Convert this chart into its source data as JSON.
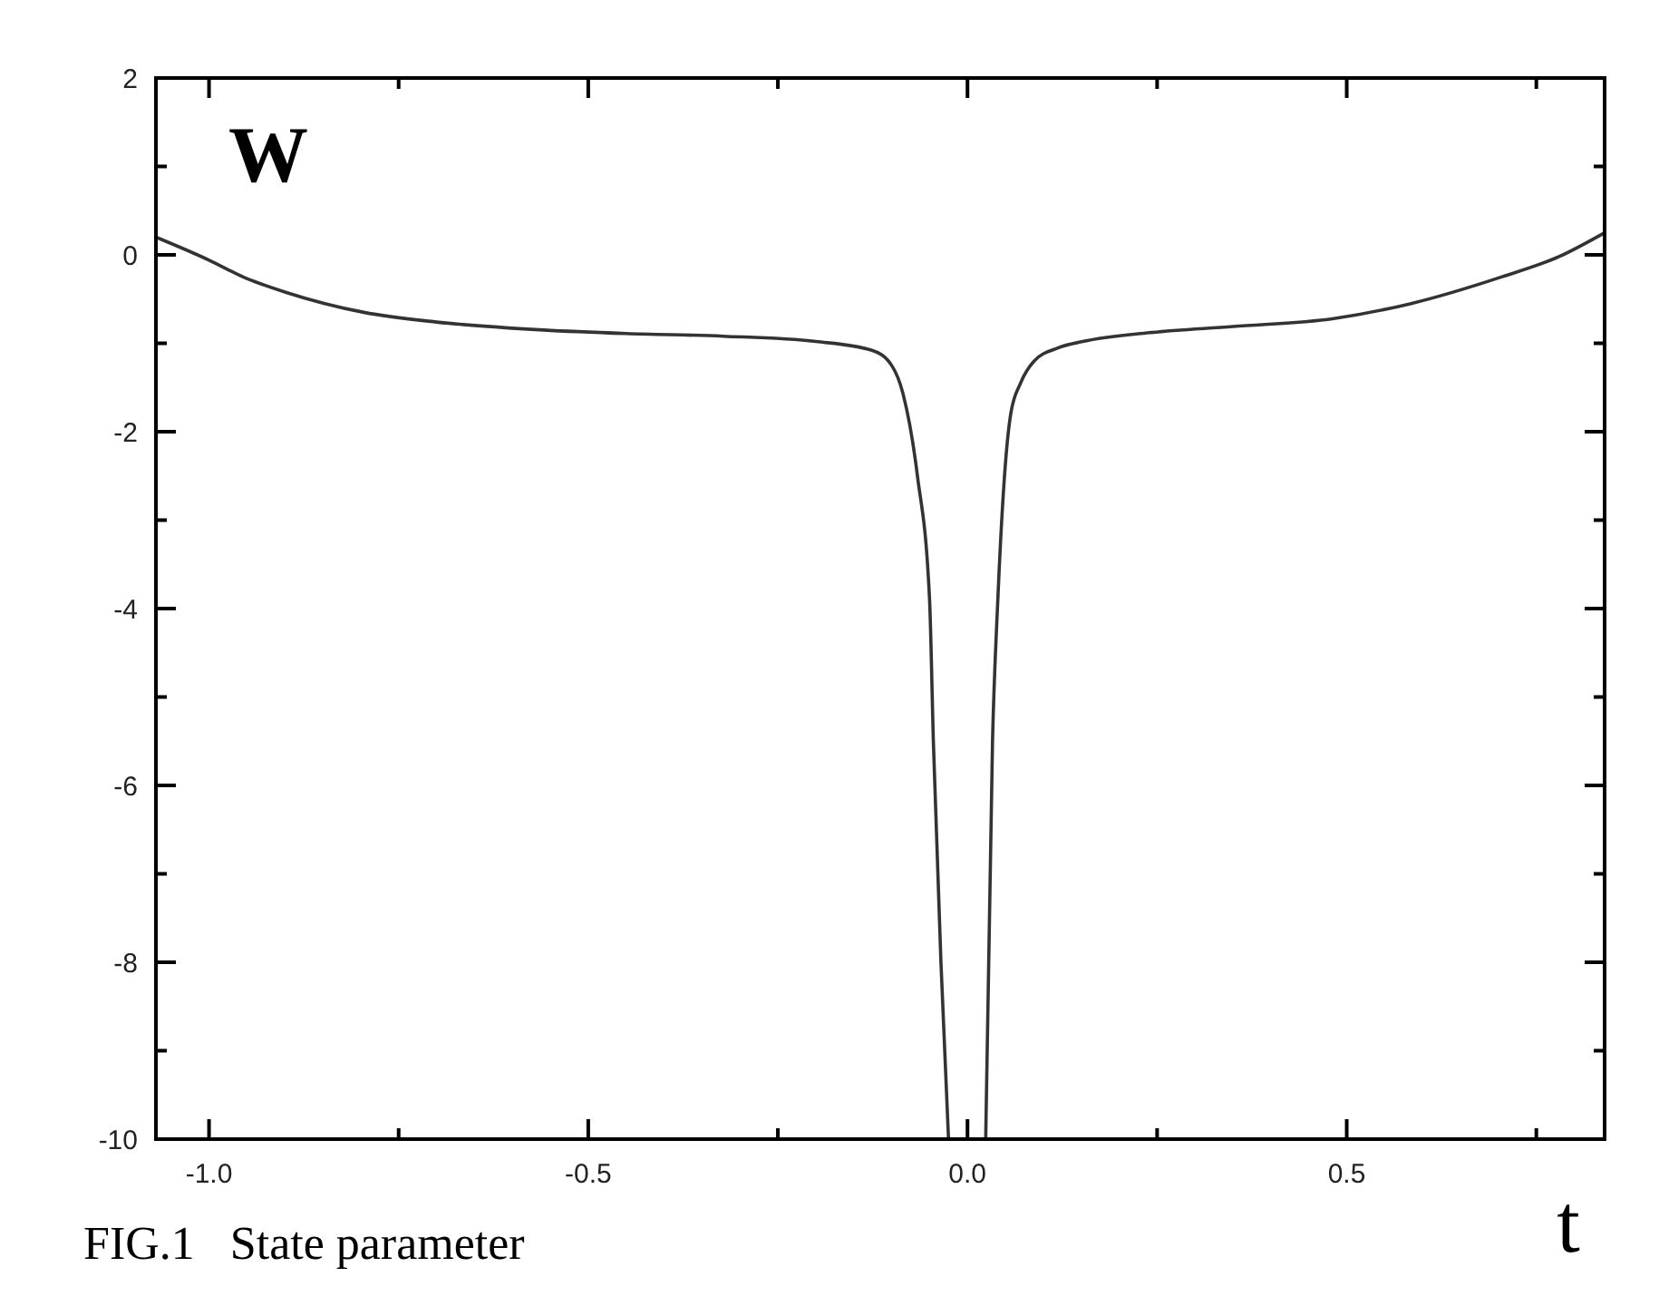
{
  "chart_data": {
    "type": "line",
    "ylabel": "W",
    "xlabel": "t",
    "annotations": [
      "FIG.1   State parameter"
    ],
    "xlim": [
      -1.07,
      0.84
    ],
    "ylim": [
      -10,
      2
    ],
    "xticks": [
      {
        "value": -1,
        "label": "-1.0"
      },
      {
        "value": -0.75,
        "label": null
      },
      {
        "value": -0.5,
        "label": "-0.5"
      },
      {
        "value": -0.25,
        "label": null
      },
      {
        "value": 0,
        "label": "0.0"
      },
      {
        "value": 0.25,
        "label": null
      },
      {
        "value": 0.5,
        "label": "0.5"
      },
      {
        "value": 0.75,
        "label": null
      }
    ],
    "yticks": [
      2,
      {
        "value": 1,
        "label": null
      },
      0,
      {
        "value": -1,
        "label": null
      },
      -2,
      {
        "value": -3,
        "label": null
      },
      -4,
      {
        "value": -5,
        "label": null
      },
      -6,
      {
        "value": -7,
        "label": null
      },
      -8,
      {
        "value": -9,
        "label": null
      },
      -10
    ],
    "grid": false,
    "marker": "none",
    "line_style": "solid",
    "series": [
      {
        "color": "#333333",
        "x": [
          -1.07,
          -1.0,
          -0.955,
          -0.9,
          -0.796,
          -0.7,
          -0.559,
          -0.45,
          -0.322,
          -0.2,
          -0.126,
          -0.1,
          -0.085,
          -0.066,
          -0.05,
          -0.045,
          -0.035,
          -0.025,
          null,
          0.024,
          0.033,
          0.04,
          0.048,
          0.057,
          0.07,
          0.088,
          0.12,
          0.152,
          0.24,
          0.35,
          0.483,
          0.585,
          0.704,
          0.78,
          0.84
        ],
        "values": [
          0.2,
          -0.06,
          -0.25,
          -0.42,
          -0.65,
          -0.76,
          -0.85,
          -0.89,
          -0.92,
          -0.98,
          -1.08,
          -1.25,
          -1.57,
          -2.5,
          -3.9,
          -5.5,
          -8.0,
          -10,
          null,
          -10,
          -5.5,
          -3.9,
          -2.6,
          -1.8,
          -1.45,
          -1.2,
          -1.05,
          -0.98,
          -0.88,
          -0.81,
          -0.72,
          -0.55,
          -0.25,
          -0.02,
          0.25
        ]
      }
    ]
  }
}
